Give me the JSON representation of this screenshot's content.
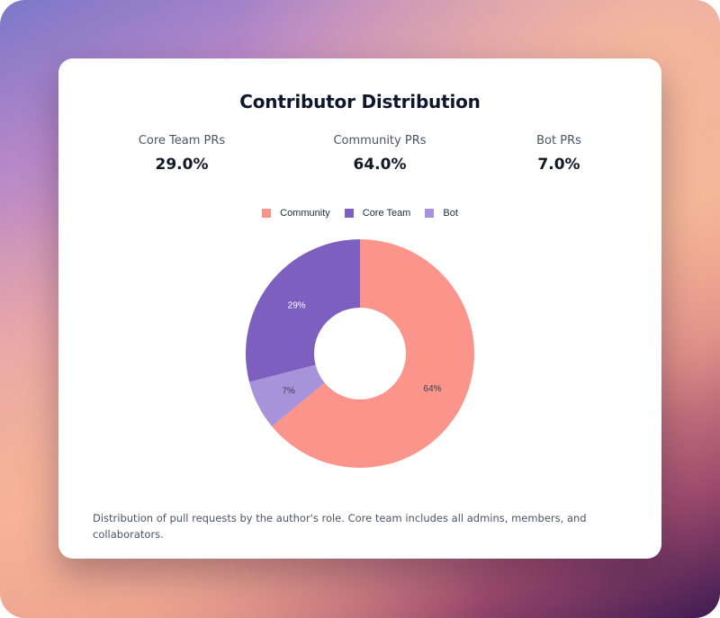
{
  "title": "Contributor Distribution",
  "stats": [
    {
      "label": "Core Team PRs",
      "value": "29.0%"
    },
    {
      "label": "Community PRs",
      "value": "64.0%"
    },
    {
      "label": "Bot PRs",
      "value": "7.0%"
    }
  ],
  "legend": [
    {
      "label": "Community",
      "color": "#fb948a"
    },
    {
      "label": "Core Team",
      "color": "#7c5fbf"
    },
    {
      "label": "Bot",
      "color": "#a793d9"
    }
  ],
  "chart_data": {
    "type": "pie",
    "donut": true,
    "legend_position": "top-center",
    "slices": [
      {
        "label": "Community",
        "value": 64,
        "display": "64%",
        "color": "#fb948a"
      },
      {
        "label": "Bot",
        "value": 7,
        "display": "7%",
        "color": "#a793d9"
      },
      {
        "label": "Core Team",
        "value": 29,
        "display": "29%",
        "color": "#7c5fbf"
      }
    ]
  },
  "footnote": "Distribution of pull requests by the author's role. Core team includes all admins, members, and collaborators."
}
